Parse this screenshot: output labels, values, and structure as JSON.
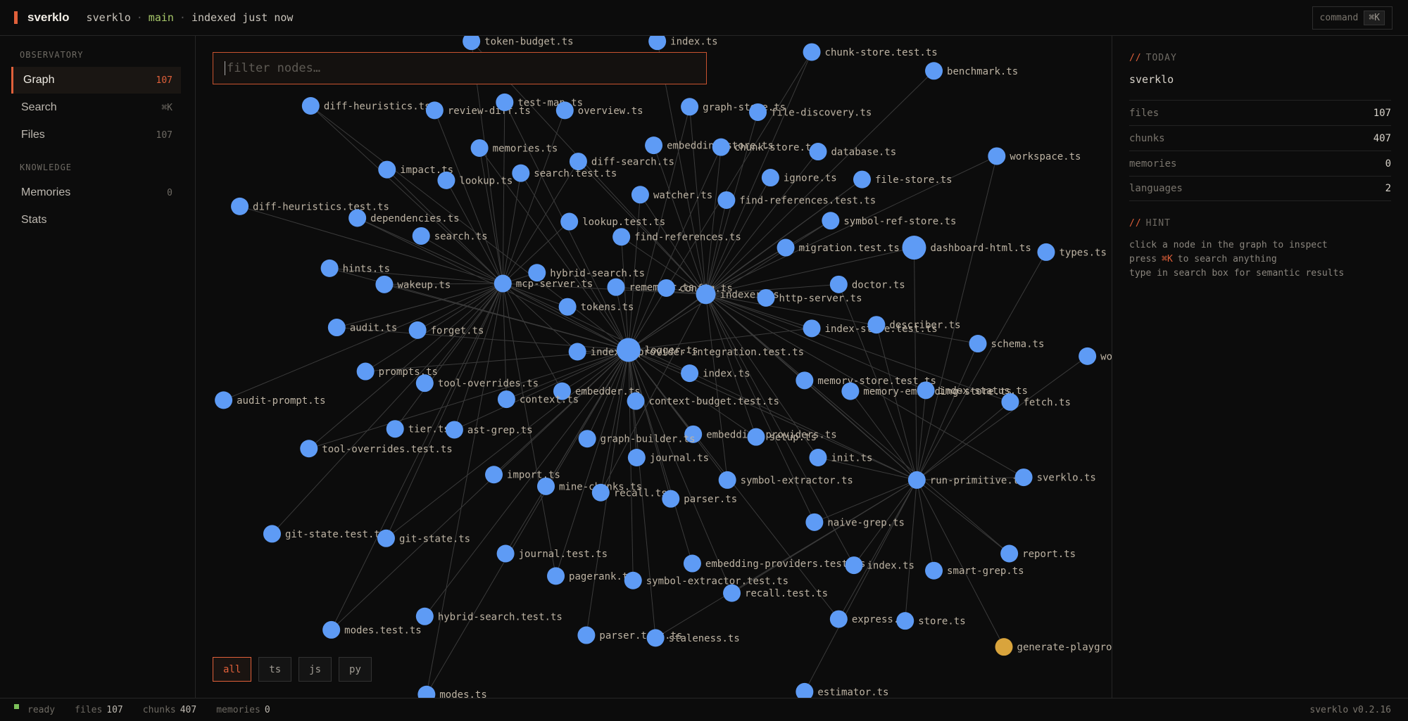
{
  "header": {
    "brand": "sverklo",
    "repo": "sverklo",
    "branch": "main",
    "status": "indexed just now",
    "command": "command",
    "command_key": "⌘K"
  },
  "sidebar": {
    "sections": [
      {
        "title": "OBSERVATORY",
        "items": [
          {
            "label": "Graph",
            "count": 107
          },
          {
            "label": "Search",
            "shortcut": "⌘K"
          },
          {
            "label": "Files",
            "count": 107
          }
        ]
      },
      {
        "title": "KNOWLEDGE",
        "items": [
          {
            "label": "Memories",
            "count": 0
          },
          {
            "label": "Stats"
          }
        ]
      }
    ]
  },
  "graph": {
    "filter_placeholder": "filter nodes…",
    "filters": [
      "all",
      "ts",
      "js",
      "py"
    ],
    "node_color": "#5e9bf5",
    "nodes": [
      {
        "label": "token-budget.ts"
      },
      {
        "label": "index.ts"
      },
      {
        "label": "chunk-store.test.ts"
      },
      {
        "label": "benchmark.ts"
      },
      {
        "label": "diff-heuristics.ts"
      },
      {
        "label": "review-diff.ts"
      },
      {
        "label": "test-map.ts"
      },
      {
        "label": "overview.ts"
      },
      {
        "label": "graph-store.ts"
      },
      {
        "label": "file-discovery.ts"
      },
      {
        "label": "memories.ts"
      },
      {
        "label": "embedding-store.ts"
      },
      {
        "label": "chunk-store.ts"
      },
      {
        "label": "database.ts"
      },
      {
        "label": "workspace.ts"
      },
      {
        "label": "impact.ts"
      },
      {
        "label": "diff-search.ts"
      },
      {
        "label": "lookup.ts"
      },
      {
        "label": "search.test.ts"
      },
      {
        "label": "ignore.ts"
      },
      {
        "label": "file-store.ts"
      },
      {
        "label": "diff-heuristics.test.ts"
      },
      {
        "label": "watcher.ts"
      },
      {
        "label": "find-references.test.ts"
      },
      {
        "label": "dependencies.ts"
      },
      {
        "label": "lookup.test.ts"
      },
      {
        "label": "symbol-ref-store.ts"
      },
      {
        "label": "search.ts"
      },
      {
        "label": "find-references.ts"
      },
      {
        "label": "migration.test.ts"
      },
      {
        "label": "dashboard-html.ts"
      },
      {
        "label": "types.ts"
      },
      {
        "label": "hints.ts"
      },
      {
        "label": "hybrid-search.ts"
      },
      {
        "label": "wakeup.ts"
      },
      {
        "label": "mcp-server.ts"
      },
      {
        "label": "remember.ts"
      },
      {
        "label": "config.ts"
      },
      {
        "label": "indexer.ts"
      },
      {
        "label": "http-server.ts"
      },
      {
        "label": "doctor.ts"
      },
      {
        "label": "tokens.ts"
      },
      {
        "label": "audit.ts"
      },
      {
        "label": "forget.ts"
      },
      {
        "label": "index-store.test.ts"
      },
      {
        "label": "describer.ts"
      },
      {
        "label": "schema.ts"
      },
      {
        "label": "wo"
      },
      {
        "label": "indexer-provider-integration.test.ts"
      },
      {
        "label": "logger.ts"
      },
      {
        "label": "prompts.ts"
      },
      {
        "label": "index.ts"
      },
      {
        "label": "memory-store.test.ts"
      },
      {
        "label": "tool-overrides.ts"
      },
      {
        "label": "embedder.ts"
      },
      {
        "label": "memory-embedding-store.ts"
      },
      {
        "label": "index-status.ts"
      },
      {
        "label": "audit-prompt.ts"
      },
      {
        "label": "context.ts"
      },
      {
        "label": "context-budget.test.ts"
      },
      {
        "label": "fetch.ts"
      },
      {
        "label": "tier.ts"
      },
      {
        "label": "ast-grep.ts"
      },
      {
        "label": "embedding-providers.ts"
      },
      {
        "label": "setup.ts"
      },
      {
        "label": "graph-builder.ts"
      },
      {
        "label": "tool-overrides.test.ts"
      },
      {
        "label": "journal.ts"
      },
      {
        "label": "init.ts"
      },
      {
        "label": "import.ts"
      },
      {
        "label": "symbol-extractor.ts"
      },
      {
        "label": "run-primitive.ts"
      },
      {
        "label": "sverklo.ts"
      },
      {
        "label": "mine-chunks.ts"
      },
      {
        "label": "recall.ts"
      },
      {
        "label": "parser.ts"
      },
      {
        "label": "naive-grep.ts"
      },
      {
        "label": "git-state.test.ts"
      },
      {
        "label": "git-state.ts"
      },
      {
        "label": "journal.test.ts"
      },
      {
        "label": "report.ts"
      },
      {
        "label": "embedding-providers.test.ts"
      },
      {
        "label": "index.ts"
      },
      {
        "label": "smart-grep.ts"
      },
      {
        "label": "pagerank.ts"
      },
      {
        "label": "symbol-extractor.test.ts"
      },
      {
        "label": "recall.test.ts"
      },
      {
        "label": "hybrid-search.test.ts"
      },
      {
        "label": "express.ts"
      },
      {
        "label": "store.ts"
      },
      {
        "label": "modes.test.ts"
      },
      {
        "label": "parser.test.ts"
      },
      {
        "label": "staleness.ts"
      },
      {
        "label": "generate-playground.ts",
        "color": "#d9a43c"
      },
      {
        "label": "modes.ts"
      },
      {
        "label": "estimator.ts"
      }
    ]
  },
  "panel": {
    "today": {
      "prefix": "//",
      "title": "TODAY"
    },
    "project": "sverklo",
    "stats": [
      {
        "label": "files",
        "value": 107
      },
      {
        "label": "chunks",
        "value": 407
      },
      {
        "label": "memories",
        "value": 0
      },
      {
        "label": "languages",
        "value": 2
      }
    ],
    "hint": {
      "prefix": "//",
      "title": "HINT",
      "lines": [
        {
          "text": "click a node in the graph to inspect"
        },
        {
          "before": "press",
          "key": "⌘K",
          "after": "to search anything"
        },
        {
          "text": "type in search box for semantic results"
        }
      ]
    }
  },
  "status": {
    "state": "ready",
    "stats": [
      {
        "label": "files",
        "value": 107
      },
      {
        "label": "chunks",
        "value": 407
      },
      {
        "label": "memories",
        "value": 0
      }
    ],
    "app": "sverklo",
    "version": "v0.2.16"
  }
}
